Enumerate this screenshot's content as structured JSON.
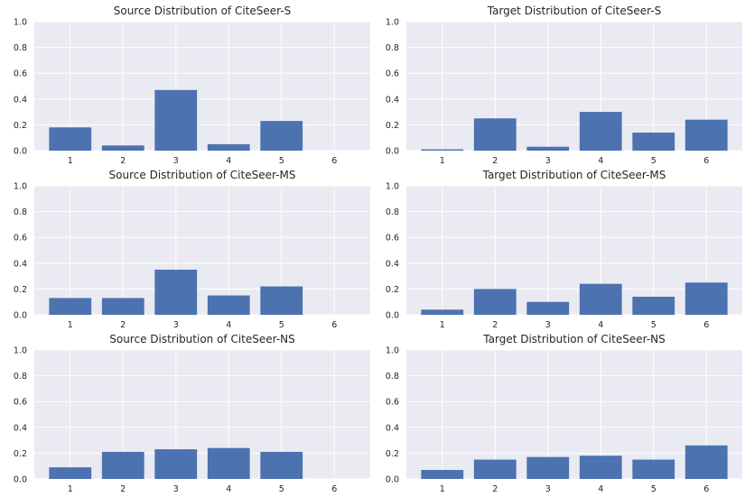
{
  "chart_data": [
    {
      "type": "bar",
      "title": "Source Distribution of CiteSeer-S",
      "xlabel": "",
      "ylabel": "",
      "categories": [
        "1",
        "2",
        "3",
        "4",
        "5",
        "6"
      ],
      "values": [
        0.18,
        0.04,
        0.47,
        0.05,
        0.23,
        0.0
      ],
      "ylim": [
        0,
        1.0
      ],
      "yticks": [
        "0.0",
        "0.2",
        "0.4",
        "0.6",
        "0.8",
        "1.0"
      ],
      "grid": true
    },
    {
      "type": "bar",
      "title": "Target Distribution of CiteSeer-S",
      "xlabel": "",
      "ylabel": "",
      "categories": [
        "1",
        "2",
        "3",
        "4",
        "5",
        "6"
      ],
      "values": [
        0.01,
        0.25,
        0.03,
        0.3,
        0.14,
        0.24
      ],
      "ylim": [
        0,
        1.0
      ],
      "yticks": [
        "0.0",
        "0.2",
        "0.4",
        "0.6",
        "0.8",
        "1.0"
      ],
      "grid": true
    },
    {
      "type": "bar",
      "title": "Source Distribution of CiteSeer-MS",
      "xlabel": "",
      "ylabel": "",
      "categories": [
        "1",
        "2",
        "3",
        "4",
        "5",
        "6"
      ],
      "values": [
        0.13,
        0.13,
        0.35,
        0.15,
        0.22,
        0.0
      ],
      "ylim": [
        0,
        1.0
      ],
      "yticks": [
        "0.0",
        "0.2",
        "0.4",
        "0.6",
        "0.8",
        "1.0"
      ],
      "grid": true
    },
    {
      "type": "bar",
      "title": "Target Distribution of CiteSeer-MS",
      "xlabel": "",
      "ylabel": "",
      "categories": [
        "1",
        "2",
        "3",
        "4",
        "5",
        "6"
      ],
      "values": [
        0.04,
        0.2,
        0.1,
        0.24,
        0.14,
        0.25
      ],
      "ylim": [
        0,
        1.0
      ],
      "yticks": [
        "0.0",
        "0.2",
        "0.4",
        "0.6",
        "0.8",
        "1.0"
      ],
      "grid": true
    },
    {
      "type": "bar",
      "title": "Source Distribution of CiteSeer-NS",
      "xlabel": "",
      "ylabel": "",
      "categories": [
        "1",
        "2",
        "3",
        "4",
        "5",
        "6"
      ],
      "values": [
        0.09,
        0.21,
        0.23,
        0.24,
        0.21,
        0.0
      ],
      "ylim": [
        0,
        1.0
      ],
      "yticks": [
        "0.0",
        "0.2",
        "0.4",
        "0.6",
        "0.8",
        "1.0"
      ],
      "grid": true
    },
    {
      "type": "bar",
      "title": "Target Distribution of CiteSeer-NS",
      "xlabel": "",
      "ylabel": "",
      "categories": [
        "1",
        "2",
        "3",
        "4",
        "5",
        "6"
      ],
      "values": [
        0.07,
        0.15,
        0.17,
        0.18,
        0.15,
        0.26
      ],
      "ylim": [
        0,
        1.0
      ],
      "yticks": [
        "0.0",
        "0.2",
        "0.4",
        "0.6",
        "0.8",
        "1.0"
      ],
      "grid": true
    }
  ],
  "style": {
    "bar_color": "#4c72b0",
    "plot_background": "#eaeaf2",
    "grid_color": "#ffffff",
    "text_color": "#262626"
  }
}
